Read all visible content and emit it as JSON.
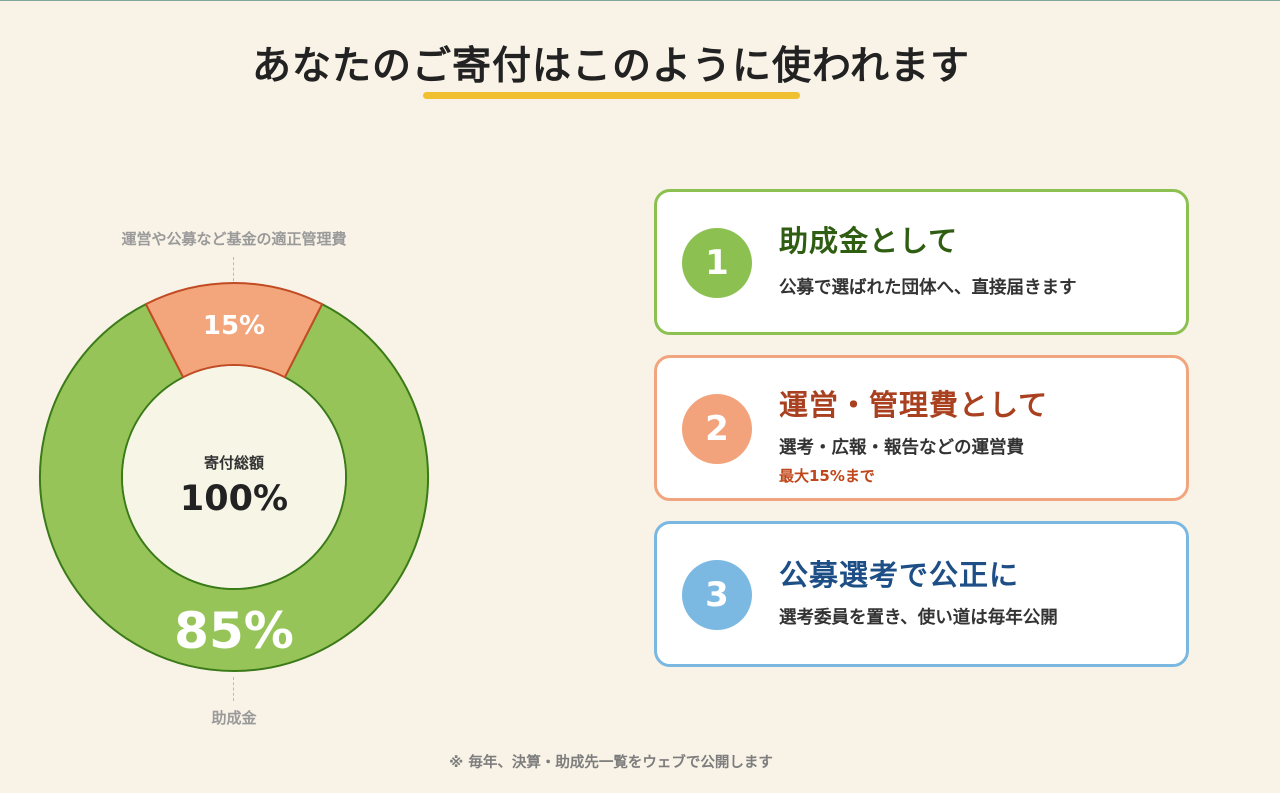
{
  "heading": "あなたのご寄付はこのように使われます",
  "chart_data": {
    "type": "pie",
    "center_label": "寄付総額",
    "center_value": "100%",
    "slices": [
      {
        "label": "助成金",
        "value": 85,
        "display": "85%",
        "color": "#97c459",
        "stroke": "#3b7a18"
      },
      {
        "label": "運営や公募など基金の適正管理費",
        "value": 15,
        "display": "15%",
        "color": "#f3a57c",
        "stroke": "#c14b23"
      }
    ]
  },
  "callouts": {
    "top": "運営や公募など基金の適正管理費",
    "bottom": "助成金"
  },
  "cards": [
    {
      "number": "1",
      "title": "助成金として",
      "desc": "公募で選ばれた団体へ、直接届きます"
    },
    {
      "number": "2",
      "title": "運営・管理費として",
      "desc": "選考・広報・報告などの運営費",
      "note": "最大15%まで"
    },
    {
      "number": "3",
      "title": "公募選考で公正に",
      "desc": "選考委員を置き、使い道は毎年公開"
    }
  ],
  "footnote": "※ 毎年、決算・助成先一覧をウェブで公開します",
  "colors": {
    "background": "#f9f3e7",
    "accent_underline": "#f0c030",
    "green": "#8cc152",
    "orange": "#f2a37c",
    "blue": "#7bb9e3"
  }
}
